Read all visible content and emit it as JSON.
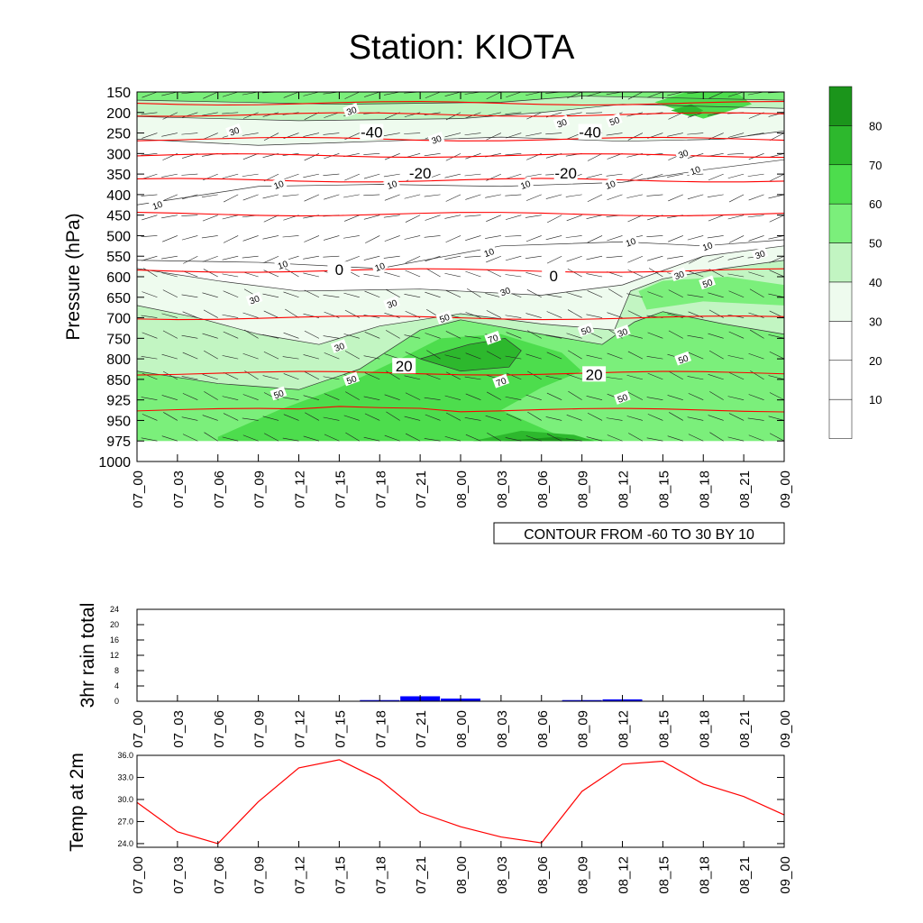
{
  "title": "Station: KIOTA",
  "colors": {
    "shade": [
      "#ffffff",
      "#ffffff",
      "#ffffff",
      "#eefbee",
      "#c2f5c2",
      "#7bef7b",
      "#4ddd4d",
      "#2db82d",
      "#1b951b"
    ],
    "red_contour": "#ff0000",
    "rain_bar": "#0000ff",
    "temp_line": "#ff0000"
  },
  "chart_data": [
    {
      "type": "contour",
      "name": "pressure-time cross section",
      "ylabel": "Pressure (hPa)",
      "pressure_levels": [
        150,
        200,
        250,
        300,
        350,
        400,
        450,
        500,
        550,
        600,
        650,
        700,
        750,
        800,
        850,
        925,
        950,
        975,
        1000
      ],
      "time_labels": [
        "07_00",
        "07_03",
        "07_06",
        "07_09",
        "07_12",
        "07_15",
        "07_18",
        "07_21",
        "08_00",
        "08_03",
        "08_06",
        "08_09",
        "08_12",
        "08_15",
        "08_18",
        "08_21",
        "09_00"
      ],
      "shading_legend": [
        "10",
        "20",
        "30",
        "40",
        "50",
        "60",
        "70",
        "80"
      ],
      "contour_info": "CONTOUR FROM -60 TO 30 BY 10",
      "temperature_contours": [
        {
          "value": -40,
          "label": "-40",
          "level": 7.3
        },
        {
          "value": -20,
          "label": "-20",
          "level": 4.8
        },
        {
          "value": 0,
          "label": "0",
          "level": 9.4
        },
        {
          "value": 20,
          "label": "20",
          "level": 13.7
        }
      ],
      "rh_contour_labels": [
        "10",
        "30",
        "50",
        "70"
      ],
      "label_positions": [
        {
          "text": "-40",
          "t": 5.8,
          "level": 2.0,
          "kind": "red"
        },
        {
          "text": "-40",
          "t": 11.2,
          "level": 2.0,
          "kind": "red"
        },
        {
          "text": "-20",
          "t": 7.0,
          "level": 4.0,
          "kind": "red"
        },
        {
          "text": "-20",
          "t": 10.6,
          "level": 4.0,
          "kind": "red"
        },
        {
          "text": "0",
          "t": 5.0,
          "level": 8.7,
          "kind": "red"
        },
        {
          "text": "0",
          "t": 10.3,
          "level": 9.0,
          "kind": "red"
        },
        {
          "text": "20",
          "t": 6.6,
          "level": 13.4,
          "kind": "red"
        },
        {
          "text": "20",
          "t": 11.3,
          "level": 13.8,
          "kind": "red"
        },
        {
          "text": "30",
          "t": 5.3,
          "level": 0.9,
          "kind": "rh"
        },
        {
          "text": "30",
          "t": 2.4,
          "level": 1.9,
          "kind": "rh"
        },
        {
          "text": "30",
          "t": 7.4,
          "level": 2.3,
          "kind": "rh"
        },
        {
          "text": "30",
          "t": 10.5,
          "level": 1.5,
          "kind": "rh"
        },
        {
          "text": "50",
          "t": 11.8,
          "level": 1.4,
          "kind": "rh"
        },
        {
          "text": "30",
          "t": 13.5,
          "level": 3.0,
          "kind": "rh"
        },
        {
          "text": "10",
          "t": 13.8,
          "level": 3.8,
          "kind": "rh"
        },
        {
          "text": "10",
          "t": 3.5,
          "level": 4.5,
          "kind": "rh"
        },
        {
          "text": "10",
          "t": 0.5,
          "level": 5.5,
          "kind": "rh"
        },
        {
          "text": "10",
          "t": 6.3,
          "level": 4.5,
          "kind": "rh"
        },
        {
          "text": "10",
          "t": 9.6,
          "level": 4.5,
          "kind": "rh"
        },
        {
          "text": "10",
          "t": 11.7,
          "level": 4.5,
          "kind": "rh"
        },
        {
          "text": "10",
          "t": 8.7,
          "level": 7.8,
          "kind": "rh"
        },
        {
          "text": "10",
          "t": 12.2,
          "level": 7.3,
          "kind": "rh"
        },
        {
          "text": "10",
          "t": 14.1,
          "level": 7.5,
          "kind": "rh"
        },
        {
          "text": "30",
          "t": 15.4,
          "level": 7.9,
          "kind": "rh"
        },
        {
          "text": "10",
          "t": 3.6,
          "level": 8.4,
          "kind": "rh"
        },
        {
          "text": "10",
          "t": 6.0,
          "level": 8.5,
          "kind": "rh"
        },
        {
          "text": "30",
          "t": 13.4,
          "level": 8.9,
          "kind": "rh"
        },
        {
          "text": "50",
          "t": 14.1,
          "level": 9.3,
          "kind": "rh"
        },
        {
          "text": "30",
          "t": 2.9,
          "level": 10.1,
          "kind": "rh"
        },
        {
          "text": "30",
          "t": 6.3,
          "level": 10.3,
          "kind": "rh"
        },
        {
          "text": "30",
          "t": 9.1,
          "level": 9.7,
          "kind": "rh"
        },
        {
          "text": "50",
          "t": 7.6,
          "level": 11.0,
          "kind": "rh"
        },
        {
          "text": "50",
          "t": 11.1,
          "level": 11.6,
          "kind": "rh"
        },
        {
          "text": "30",
          "t": 12.0,
          "level": 11.7,
          "kind": "rh"
        },
        {
          "text": "70",
          "t": 8.8,
          "level": 12.0,
          "kind": "rh"
        },
        {
          "text": "30",
          "t": 5.0,
          "level": 12.4,
          "kind": "rh"
        },
        {
          "text": "50",
          "t": 13.5,
          "level": 13.0,
          "kind": "rh"
        },
        {
          "text": "50",
          "t": 5.3,
          "level": 14.0,
          "kind": "rh"
        },
        {
          "text": "70",
          "t": 9.0,
          "level": 14.1,
          "kind": "rh"
        },
        {
          "text": "50",
          "t": 3.5,
          "level": 14.7,
          "kind": "rh"
        },
        {
          "text": "50",
          "t": 12.0,
          "level": 14.9,
          "kind": "rh"
        }
      ]
    },
    {
      "type": "bar",
      "name": "rain",
      "ylabel": "3hr rain total",
      "ylim": [
        0,
        24
      ],
      "y_ticks": [
        0,
        4,
        8,
        12,
        16,
        20,
        24
      ],
      "categories": [
        "07_00",
        "07_03",
        "07_06",
        "07_09",
        "07_12",
        "07_15",
        "07_18",
        "07_21",
        "08_00",
        "08_03",
        "08_06",
        "08_09",
        "08_12",
        "08_15",
        "08_18",
        "08_21",
        "09_00"
      ],
      "values": [
        0,
        0,
        0,
        0,
        0,
        0,
        0.3,
        1.3,
        0.7,
        0,
        0,
        0.3,
        0.5,
        0,
        0,
        0,
        0
      ]
    },
    {
      "type": "line",
      "name": "temperature",
      "ylabel": "Temp at 2m",
      "ylim": [
        23.5,
        36.0
      ],
      "y_ticks": [
        "24.0",
        "27.0",
        "30.0",
        "33.0",
        "36.0"
      ],
      "categories": [
        "07_00",
        "07_03",
        "07_06",
        "07_09",
        "07_12",
        "07_15",
        "07_18",
        "07_21",
        "08_00",
        "08_03",
        "08_06",
        "08_09",
        "08_12",
        "08_15",
        "08_18",
        "08_21",
        "09_00"
      ],
      "values": [
        29.6,
        25.6,
        24.0,
        29.7,
        34.3,
        35.4,
        32.7,
        28.2,
        26.3,
        24.9,
        24.1,
        31.1,
        34.8,
        35.2,
        32.1,
        30.4,
        27.9
      ]
    }
  ]
}
